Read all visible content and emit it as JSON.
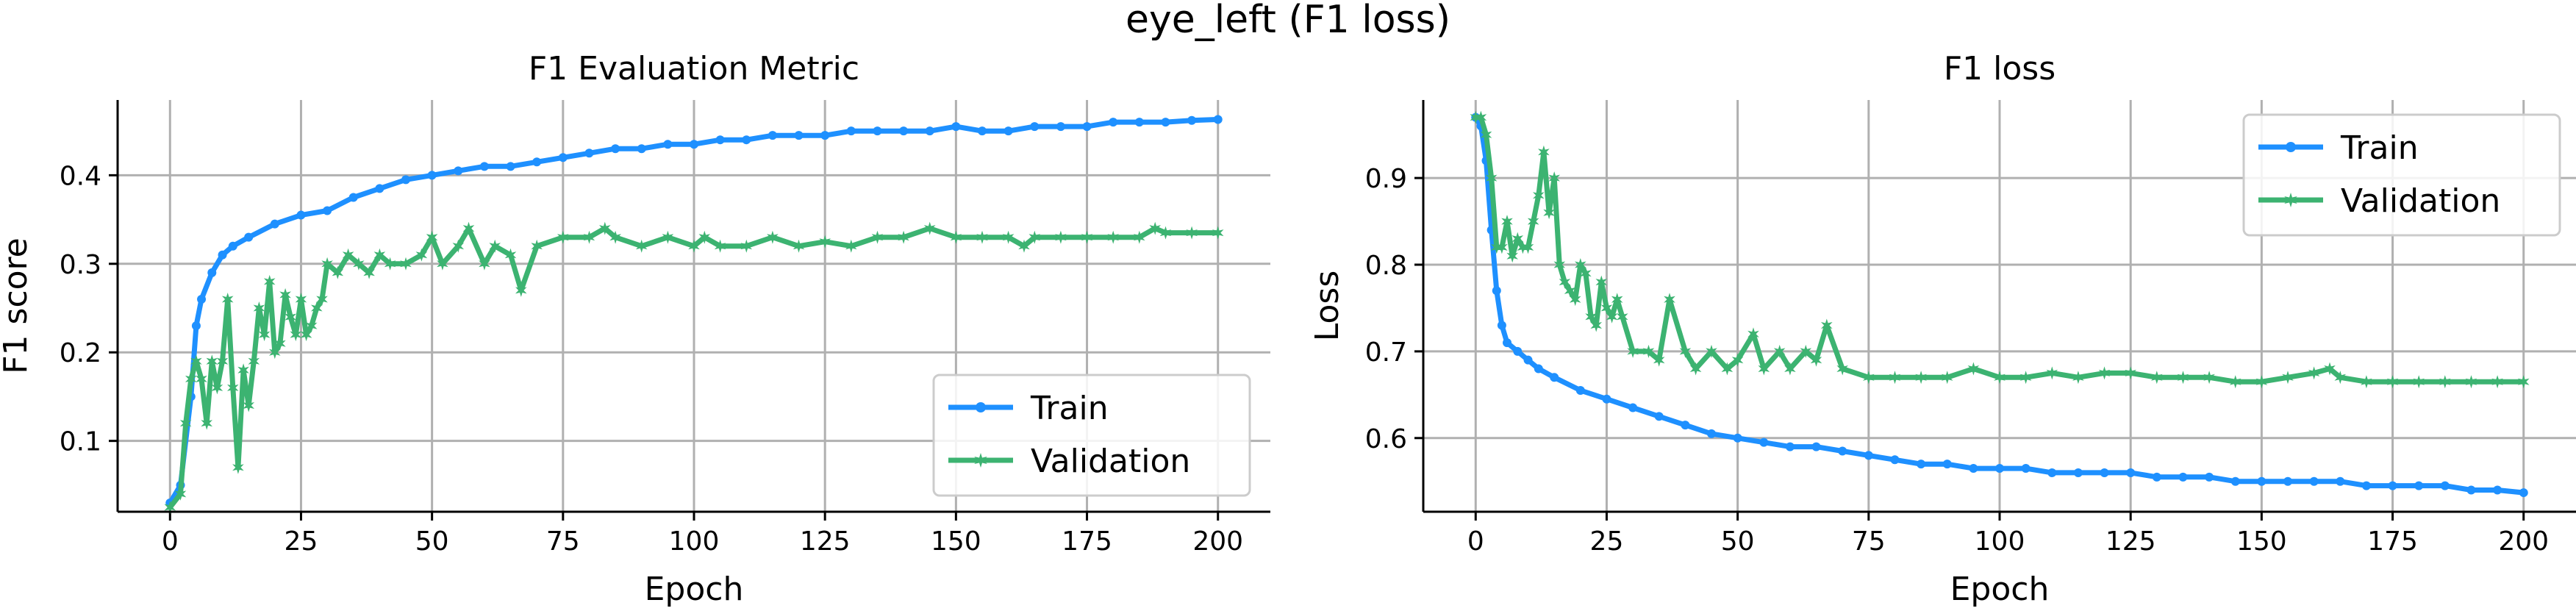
{
  "figure": {
    "title": "eye_left (F1 loss)"
  },
  "colors": {
    "train": "#1e90ff",
    "validation": "#3cb371"
  },
  "chart_data": [
    {
      "type": "line",
      "title": "F1 Evaluation Metric",
      "xlabel": "Epoch",
      "ylabel": "F1 score",
      "xlim": [
        -10,
        210
      ],
      "ylim": [
        0.02,
        0.485
      ],
      "xticks": [
        0,
        25,
        50,
        75,
        100,
        125,
        150,
        175,
        200
      ],
      "yticks": [
        0.1,
        0.2,
        0.3,
        0.4
      ],
      "ytick_labels": [
        "0.1",
        "0.2",
        "0.3",
        "0.4"
      ],
      "grid": true,
      "legend": "bottom-right",
      "series": [
        {
          "name": "Train",
          "x": [
            0,
            2,
            4,
            5,
            6,
            8,
            10,
            12,
            15,
            20,
            25,
            30,
            35,
            40,
            45,
            50,
            55,
            60,
            65,
            70,
            75,
            80,
            85,
            90,
            95,
            100,
            105,
            110,
            115,
            120,
            125,
            130,
            135,
            140,
            145,
            150,
            155,
            160,
            165,
            170,
            175,
            180,
            185,
            190,
            195,
            200
          ],
          "y": [
            0.03,
            0.05,
            0.15,
            0.23,
            0.26,
            0.29,
            0.31,
            0.32,
            0.33,
            0.345,
            0.355,
            0.36,
            0.375,
            0.385,
            0.395,
            0.4,
            0.405,
            0.41,
            0.41,
            0.415,
            0.42,
            0.425,
            0.43,
            0.43,
            0.435,
            0.435,
            0.44,
            0.44,
            0.445,
            0.445,
            0.445,
            0.45,
            0.45,
            0.45,
            0.45,
            0.455,
            0.45,
            0.45,
            0.455,
            0.455,
            0.455,
            0.46,
            0.46,
            0.46,
            0.462,
            0.463
          ]
        },
        {
          "name": "Validation",
          "x": [
            0,
            2,
            3,
            4,
            5,
            6,
            7,
            8,
            9,
            10,
            11,
            12,
            13,
            14,
            15,
            16,
            17,
            18,
            19,
            20,
            21,
            22,
            23,
            24,
            25,
            26,
            27,
            28,
            29,
            30,
            32,
            34,
            36,
            38,
            40,
            42,
            45,
            48,
            50,
            52,
            55,
            57,
            60,
            62,
            65,
            67,
            70,
            75,
            80,
            83,
            85,
            90,
            95,
            100,
            102,
            105,
            110,
            115,
            120,
            125,
            130,
            135,
            140,
            145,
            150,
            155,
            160,
            163,
            165,
            170,
            175,
            180,
            185,
            188,
            190,
            195,
            200
          ],
          "y": [
            0.025,
            0.04,
            0.12,
            0.17,
            0.19,
            0.17,
            0.12,
            0.19,
            0.16,
            0.19,
            0.26,
            0.16,
            0.07,
            0.18,
            0.14,
            0.19,
            0.25,
            0.22,
            0.28,
            0.2,
            0.21,
            0.265,
            0.24,
            0.22,
            0.26,
            0.22,
            0.23,
            0.25,
            0.26,
            0.3,
            0.29,
            0.31,
            0.3,
            0.29,
            0.31,
            0.3,
            0.3,
            0.31,
            0.33,
            0.3,
            0.32,
            0.34,
            0.3,
            0.32,
            0.31,
            0.27,
            0.32,
            0.33,
            0.33,
            0.34,
            0.33,
            0.32,
            0.33,
            0.32,
            0.33,
            0.32,
            0.32,
            0.33,
            0.32,
            0.325,
            0.32,
            0.33,
            0.33,
            0.34,
            0.33,
            0.33,
            0.33,
            0.32,
            0.33,
            0.33,
            0.33,
            0.33,
            0.33,
            0.34,
            0.335,
            0.335,
            0.335
          ]
        }
      ]
    },
    {
      "type": "line",
      "title": "F1 loss",
      "xlabel": "Epoch",
      "ylabel": "Loss",
      "xlim": [
        -10,
        210
      ],
      "ylim": [
        0.515,
        0.99
      ],
      "xticks": [
        0,
        25,
        50,
        75,
        100,
        125,
        150,
        175,
        200
      ],
      "yticks": [
        0.6,
        0.7,
        0.8,
        0.9
      ],
      "ytick_labels": [
        "0.6",
        "0.7",
        "0.8",
        "0.9"
      ],
      "grid": true,
      "legend": "top-right",
      "series": [
        {
          "name": "Train",
          "x": [
            0,
            1,
            2,
            3,
            4,
            5,
            6,
            8,
            10,
            12,
            15,
            20,
            25,
            30,
            35,
            40,
            45,
            50,
            55,
            60,
            65,
            70,
            75,
            80,
            85,
            90,
            95,
            100,
            105,
            110,
            115,
            120,
            125,
            130,
            135,
            140,
            145,
            150,
            155,
            160,
            165,
            170,
            175,
            180,
            185,
            190,
            195,
            200
          ],
          "y": [
            0.97,
            0.96,
            0.92,
            0.84,
            0.77,
            0.73,
            0.71,
            0.7,
            0.69,
            0.68,
            0.67,
            0.655,
            0.645,
            0.635,
            0.625,
            0.615,
            0.605,
            0.6,
            0.595,
            0.59,
            0.59,
            0.585,
            0.58,
            0.575,
            0.57,
            0.57,
            0.565,
            0.565,
            0.565,
            0.56,
            0.56,
            0.56,
            0.56,
            0.555,
            0.555,
            0.555,
            0.55,
            0.55,
            0.55,
            0.55,
            0.55,
            0.545,
            0.545,
            0.545,
            0.545,
            0.54,
            0.54,
            0.537
          ]
        },
        {
          "name": "Validation",
          "x": [
            0,
            1,
            2,
            3,
            4,
            5,
            6,
            7,
            8,
            9,
            10,
            11,
            12,
            13,
            14,
            15,
            16,
            17,
            18,
            19,
            20,
            21,
            22,
            23,
            24,
            25,
            26,
            27,
            28,
            30,
            33,
            35,
            37,
            40,
            42,
            45,
            48,
            50,
            53,
            55,
            58,
            60,
            63,
            65,
            67,
            70,
            75,
            80,
            85,
            90,
            95,
            100,
            105,
            110,
            115,
            120,
            125,
            130,
            135,
            140,
            145,
            150,
            155,
            160,
            163,
            165,
            170,
            175,
            180,
            185,
            190,
            195,
            200
          ],
          "y": [
            0.97,
            0.97,
            0.95,
            0.9,
            0.82,
            0.82,
            0.85,
            0.81,
            0.83,
            0.82,
            0.82,
            0.85,
            0.88,
            0.93,
            0.86,
            0.9,
            0.8,
            0.78,
            0.77,
            0.76,
            0.8,
            0.79,
            0.74,
            0.73,
            0.78,
            0.75,
            0.74,
            0.76,
            0.74,
            0.7,
            0.7,
            0.69,
            0.76,
            0.7,
            0.68,
            0.7,
            0.68,
            0.69,
            0.72,
            0.68,
            0.7,
            0.68,
            0.7,
            0.69,
            0.73,
            0.68,
            0.67,
            0.67,
            0.67,
            0.67,
            0.68,
            0.67,
            0.67,
            0.675,
            0.67,
            0.675,
            0.675,
            0.67,
            0.67,
            0.67,
            0.665,
            0.665,
            0.67,
            0.675,
            0.68,
            0.67,
            0.665,
            0.665,
            0.665,
            0.665,
            0.665,
            0.665,
            0.665
          ]
        }
      ]
    }
  ]
}
